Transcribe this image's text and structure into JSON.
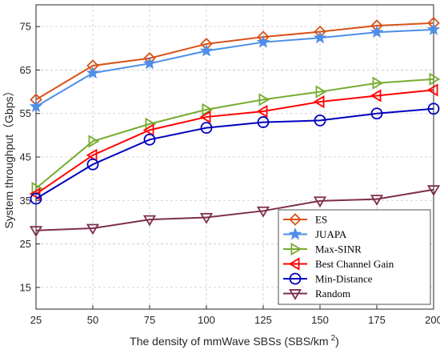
{
  "chart_data": {
    "type": "line",
    "xlabel": "The density of mmWave SBSs (SBS/km",
    "xlabel_sup": "2",
    "xlabel_end": ")",
    "ylabel": "System throughput（Gbps）",
    "x": [
      25,
      50,
      75,
      100,
      125,
      150,
      175,
      200
    ],
    "xlim": [
      25,
      200
    ],
    "ylim": [
      10,
      80
    ],
    "xticks": [
      "25",
      "50",
      "75",
      "100",
      "125",
      "150",
      "175",
      "200"
    ],
    "yticks": [
      "15",
      "25",
      "35",
      "45",
      "55",
      "65",
      "75"
    ],
    "ytick_values": [
      15,
      25,
      35,
      45,
      55,
      65,
      75
    ],
    "grid": true,
    "legend_position": "bottom-right",
    "series": [
      {
        "name": "ES",
        "color": "#d95319",
        "marker": "diamond",
        "values": [
          58.2,
          66.0,
          67.7,
          71.0,
          72.6,
          73.8,
          75.2,
          75.8
        ]
      },
      {
        "name": "JUAPA",
        "color": "#4d8fe8",
        "marker": "star",
        "values": [
          56.6,
          64.3,
          66.5,
          69.4,
          71.4,
          72.4,
          73.7,
          74.3
        ]
      },
      {
        "name": "Max-SINR",
        "color": "#77ac30",
        "marker": "triangle-right",
        "values": [
          37.8,
          48.6,
          52.6,
          55.9,
          58.2,
          60.0,
          62.0,
          62.9
        ]
      },
      {
        "name": "Best Channel Gain",
        "color": "#ff0000",
        "marker": "triangle-left",
        "values": [
          36.5,
          45.4,
          51.2,
          54.2,
          55.5,
          57.7,
          59.1,
          60.4
        ]
      },
      {
        "name": "Min-Distance",
        "color": "#0000bf",
        "marker": "circle",
        "values": [
          35.4,
          43.3,
          49.0,
          51.7,
          53.0,
          53.4,
          55.0,
          56.1
        ]
      },
      {
        "name": "Random",
        "color": "#7e2f4e",
        "marker": "triangle-down",
        "values": [
          28.1,
          28.6,
          30.6,
          31.1,
          32.6,
          34.9,
          35.3,
          37.5
        ]
      }
    ]
  }
}
